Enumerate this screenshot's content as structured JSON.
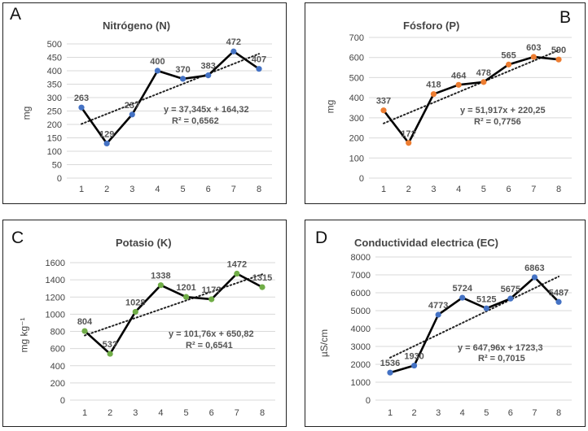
{
  "chart_data": [
    {
      "type": "line",
      "letter": "A",
      "title": "Nitrógeno (N)",
      "ylabel": "mg",
      "x": [
        1,
        2,
        3,
        4,
        5,
        6,
        7,
        8
      ],
      "series": [
        {
          "values": [
            263,
            129,
            237,
            400,
            370,
            383,
            472,
            407
          ],
          "labels": [
            "263",
            "129",
            "23?",
            "400",
            "370",
            "383",
            "472",
            "407"
          ]
        }
      ],
      "ylim": [
        0,
        500
      ],
      "yticks": [
        0,
        50,
        100,
        150,
        200,
        250,
        300,
        350,
        400,
        450,
        500
      ],
      "grid": true,
      "marker_color": "#4472c4",
      "line_color": "#000000",
      "trendline": {
        "slope": 37.345,
        "intercept": 164.32
      },
      "equation": "y = 37,345x + 164,32",
      "r2": "R² = 0,6562"
    },
    {
      "type": "line",
      "letter": "B",
      "title": "Fósforo (P)",
      "ylabel": "mg",
      "x": [
        1,
        2,
        3,
        4,
        5,
        6,
        7,
        8
      ],
      "series": [
        {
          "values": [
            337,
            175,
            418,
            464,
            478,
            565,
            603,
            590
          ],
          "labels": [
            "337",
            "17?",
            "418",
            "464",
            "478",
            "565",
            "603",
            "590"
          ]
        }
      ],
      "ylim": [
        0,
        700
      ],
      "yticks": [
        0,
        100,
        200,
        300,
        400,
        500,
        600,
        700
      ],
      "grid": true,
      "marker_color": "#ed7d31",
      "line_color": "#000000",
      "trendline": {
        "slope": 51.917,
        "intercept": 220.25
      },
      "equation": "y = 51,917x + 220,25",
      "r2": "R² = 0,7756"
    },
    {
      "type": "line",
      "letter": "C",
      "title": "Potasio (K)",
      "ylabel": "mg kg⁻¹",
      "x": [
        1,
        2,
        3,
        4,
        5,
        6,
        7,
        8
      ],
      "series": [
        {
          "values": [
            804,
            539,
            1028,
            1338,
            1201,
            1174,
            1472,
            1315
          ],
          "labels": [
            "804",
            "53?",
            "1028",
            "1338",
            "1201",
            "117?",
            "1472",
            "1315"
          ]
        }
      ],
      "ylim": [
        0,
        1600
      ],
      "yticks": [
        0,
        200,
        400,
        600,
        800,
        1000,
        1200,
        1400,
        1600
      ],
      "grid": true,
      "marker_color": "#70ad47",
      "line_color": "#000000",
      "trendline": {
        "slope": 101.76,
        "intercept": 650.82
      },
      "equation": "y = 101,76x + 650,82",
      "r2": "R² = 0,6541"
    },
    {
      "type": "line",
      "letter": "D",
      "title": "Conductividad electrica (EC)",
      "ylabel": "µS/cm",
      "x": [
        1,
        2,
        3,
        4,
        5,
        6,
        7,
        8
      ],
      "series": [
        {
          "values": [
            1536,
            1930,
            4773,
            5724,
            5125,
            5675,
            6863,
            5487
          ],
          "labels": [
            "1536",
            "1930",
            "4773",
            "5724",
            "5125",
            "5675",
            "6863",
            "5487"
          ]
        }
      ],
      "ylim": [
        0,
        8000
      ],
      "yticks": [
        0,
        1000,
        2000,
        3000,
        4000,
        5000,
        6000,
        7000,
        8000
      ],
      "grid": true,
      "marker_color": "#4472c4",
      "line_color": "#000000",
      "trendline": {
        "slope": 647.96,
        "intercept": 1723.3
      },
      "equation": "y = 647,96x + 1723,3",
      "r2": "R² = 0,7015"
    }
  ]
}
